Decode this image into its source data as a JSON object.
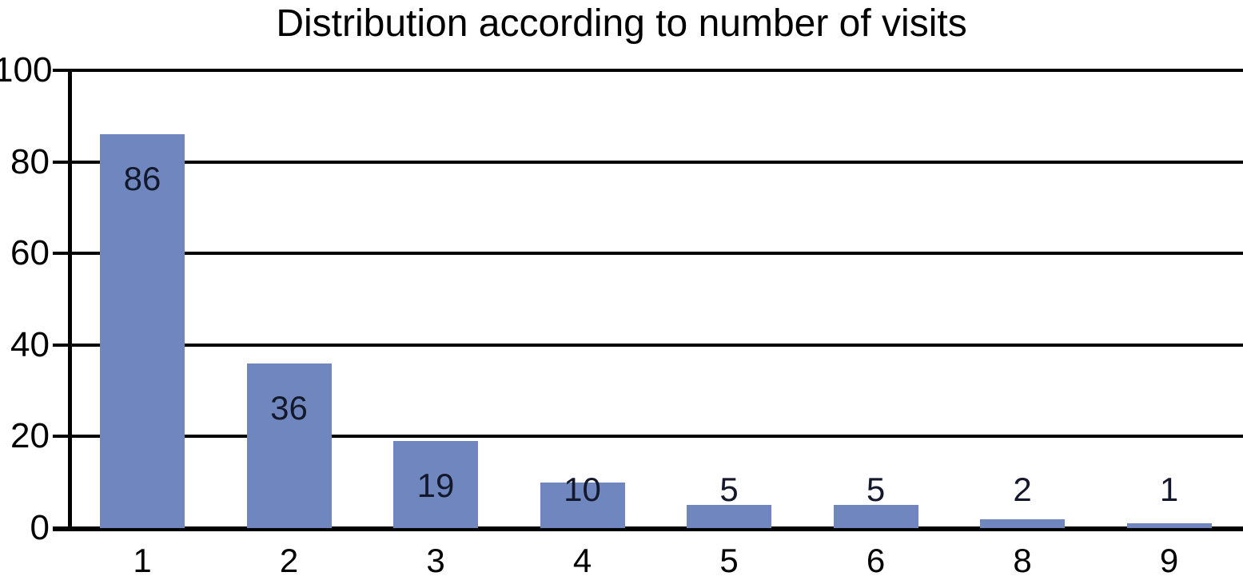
{
  "chart_data": {
    "type": "bar",
    "title": "Distribution according to number of visits",
    "categories": [
      "1",
      "2",
      "3",
      "4",
      "5",
      "6",
      "8",
      "9"
    ],
    "values": [
      86,
      36,
      19,
      10,
      5,
      5,
      2,
      1
    ],
    "xlabel": "",
    "ylabel": "",
    "ylim": [
      0,
      100
    ],
    "yticks": [
      0,
      20,
      40,
      60,
      80,
      100
    ],
    "grid": "horizontal",
    "legend": "none",
    "bar_color": "#6F87BE",
    "axis_color": "#000000",
    "value_label_color": "#14182B",
    "tick_label_color": "#000000",
    "background_color": "#FFFFFF"
  }
}
